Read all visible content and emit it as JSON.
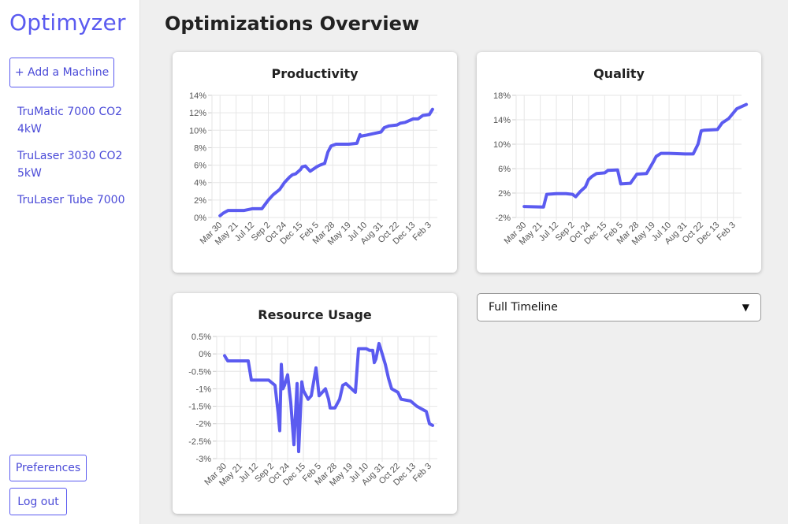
{
  "app": {
    "logo": "Optimyzer"
  },
  "sidebar": {
    "add_machine_label": "+ Add a Machine",
    "machines": [
      {
        "label": "TruMatic 7000 CO2 4kW"
      },
      {
        "label": "TruLaser 3030 CO2 5kW"
      },
      {
        "label": "TruLaser Tube 7000"
      }
    ],
    "preferences_label": "Preferences",
    "logout_label": "Log out"
  },
  "main": {
    "title": "Optimizations Overview",
    "timeline_select": {
      "selected": "Full Timeline"
    }
  },
  "colors": {
    "accent": "#5b5bf0",
    "line": "#5b5bf0",
    "grid": "#e6e6e6",
    "background": "#efefef"
  },
  "chart_data": [
    {
      "type": "line",
      "title": "Productivity",
      "x_ticks": [
        "Mar 30",
        "May 21",
        "Jul 12",
        "Sep 2",
        "Oct 24",
        "Dec 15",
        "Feb 5",
        "Mar 28",
        "May 19",
        "Jul 10",
        "Aug 31",
        "Oct 22",
        "Dec 13",
        "Feb 3"
      ],
      "y_ticks": [
        "0%",
        "2%",
        "4%",
        "6%",
        "8%",
        "10%",
        "12%",
        "14%"
      ],
      "ylim": [
        0,
        14
      ],
      "series": [
        {
          "x": [
            0,
            0.2,
            0.5,
            1.0,
            1.5,
            2.0,
            2.2,
            2.6,
            3.0,
            3.3,
            3.7,
            4.0,
            4.3,
            4.5,
            4.7,
            5.0,
            5.1,
            5.3,
            5.6,
            6.0,
            6.2,
            6.5,
            6.7,
            6.9,
            7.2,
            7.5,
            8.0,
            8.5,
            8.7,
            8.7,
            9.0,
            9.5,
            10.0,
            10.2,
            10.5,
            11.0,
            11.2,
            11.5,
            12.0,
            12.3,
            12.6,
            13.0,
            13.2
          ],
          "y": [
            0.2,
            0.5,
            0.8,
            0.8,
            0.8,
            1.0,
            1.0,
            1.0,
            2.0,
            2.6,
            3.2,
            4.0,
            4.6,
            4.9,
            5.0,
            5.5,
            5.8,
            5.9,
            5.3,
            5.8,
            6.0,
            6.2,
            7.5,
            8.2,
            8.4,
            8.4,
            8.4,
            8.5,
            9.5,
            9.3,
            9.4,
            9.6,
            9.8,
            10.3,
            10.5,
            10.6,
            10.8,
            10.9,
            11.3,
            11.3,
            11.7,
            11.8,
            12.4
          ]
        }
      ]
    },
    {
      "type": "line",
      "title": "Quality",
      "x_ticks": [
        "Mar 30",
        "May 21",
        "Jul 12",
        "Sep 2",
        "Oct 24",
        "Dec 15",
        "Feb 5",
        "Mar 28",
        "May 19",
        "Jul 10",
        "Aug 31",
        "Oct 22",
        "Dec 13",
        "Feb 3"
      ],
      "y_ticks": [
        "-2%",
        "2%",
        "6%",
        "10%",
        "14%",
        "18%"
      ],
      "ylim": [
        -2,
        18
      ],
      "series": [
        {
          "x": [
            0,
            1.2,
            1.4,
            2.0,
            2.6,
            3.0,
            3.2,
            3.5,
            3.8,
            4.0,
            4.2,
            4.5,
            5.0,
            5.2,
            5.8,
            6.0,
            6.6,
            7.0,
            7.6,
            8.0,
            8.2,
            8.5,
            9.0,
            10.0,
            10.5,
            10.8,
            11.0,
            11.2,
            12.0,
            12.3,
            12.7,
            13.2,
            13.8
          ],
          "y": [
            -0.2,
            -0.3,
            1.8,
            1.9,
            1.9,
            1.8,
            1.4,
            2.3,
            3.0,
            4.2,
            4.7,
            5.2,
            5.3,
            5.7,
            5.8,
            3.5,
            3.6,
            5.1,
            5.2,
            7.0,
            8.0,
            8.5,
            8.5,
            8.4,
            8.4,
            10.0,
            12.2,
            12.3,
            12.4,
            13.5,
            14.2,
            15.8,
            16.5
          ]
        }
      ]
    },
    {
      "type": "line",
      "title": "Resource Usage",
      "x_ticks": [
        "Mar 30",
        "May 21",
        "Jul 12",
        "Sep 2",
        "Oct 24",
        "Dec 15",
        "Feb 5",
        "Mar 28",
        "May 19",
        "Jul 10",
        "Aug 31",
        "Oct 22",
        "Dec 13",
        "Feb 3"
      ],
      "y_ticks": [
        "0.5%",
        "0%",
        "-0.5%",
        "-1%",
        "-1.5%",
        "-2%",
        "-2.5%",
        "-3%"
      ],
      "ylim": [
        -3,
        0.5
      ],
      "series": [
        {
          "x": [
            0,
            0.2,
            0.8,
            1.5,
            1.7,
            2.2,
            2.8,
            3.2,
            3.4,
            3.5,
            3.6,
            3.7,
            3.8,
            4.0,
            4.2,
            4.4,
            4.6,
            4.7,
            4.9,
            5.0,
            5.3,
            5.5,
            5.8,
            6.0,
            6.2,
            6.4,
            6.6,
            6.7,
            7.0,
            7.3,
            7.5,
            7.7,
            8.3,
            8.5,
            9.0,
            9.2,
            9.4,
            9.5,
            9.6,
            9.8,
            10.0,
            10.2,
            10.4,
            10.6,
            10.8,
            11.0,
            11.2,
            11.8,
            12.2,
            12.8,
            13.0,
            13.2
          ],
          "y": [
            -0.05,
            -0.2,
            -0.2,
            -0.2,
            -0.75,
            -0.75,
            -0.75,
            -0.9,
            -1.7,
            -2.2,
            -0.3,
            -1.0,
            -0.9,
            -0.6,
            -1.4,
            -2.6,
            -0.85,
            -2.8,
            -0.8,
            -1.05,
            -1.3,
            -1.2,
            -0.4,
            -1.2,
            -1.1,
            -1.0,
            -1.3,
            -1.55,
            -1.55,
            -1.3,
            -0.9,
            -0.85,
            -1.1,
            0.15,
            0.15,
            0.1,
            0.1,
            -0.25,
            -0.15,
            0.3,
            0.0,
            -0.3,
            -0.7,
            -1.0,
            -1.05,
            -1.1,
            -1.3,
            -1.35,
            -1.5,
            -1.65,
            -2.0,
            -2.05
          ]
        }
      ]
    }
  ]
}
